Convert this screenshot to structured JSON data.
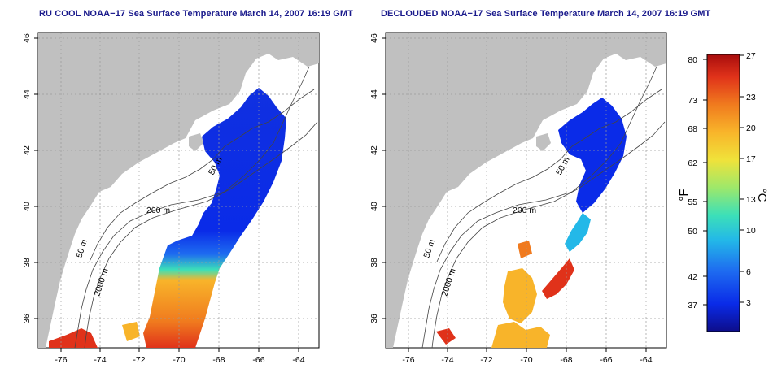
{
  "maps": [
    {
      "title": "RU COOL NOAA−17 Sea Surface Temperature March 14, 2007 16:19 GMT",
      "xticks": [
        "-76",
        "-74",
        "-72",
        "-70",
        "-68",
        "-66",
        "-64"
      ],
      "yticks": [
        "36",
        "38",
        "40",
        "42",
        "44",
        "46"
      ],
      "contour_labels": [
        "50 m",
        "200 m",
        "2000 m",
        "50 m"
      ],
      "xlim": [
        -77.2,
        -63.1
      ],
      "ylim": [
        35.0,
        46.0
      ]
    },
    {
      "title": "DECLOUDED NOAA−17 Sea Surface Temperature March 14, 2007 16:19 GMT",
      "xticks": [
        "-76",
        "-74",
        "-72",
        "-70",
        "-68",
        "-66",
        "-64"
      ],
      "yticks": [
        "36",
        "38",
        "40",
        "42",
        "44",
        "46"
      ],
      "contour_labels": [
        "50 m",
        "200 m",
        "2000 m",
        "50 m"
      ],
      "xlim": [
        -77.2,
        -63.1
      ],
      "ylim": [
        35.0,
        46.0
      ]
    }
  ],
  "colorbar": {
    "fahrenheit_label": "°F",
    "celsius_label": "°C",
    "fahrenheit_ticks": [
      "80",
      "73",
      "68",
      "62",
      "55",
      "50",
      "42",
      "37"
    ],
    "celsius_ticks": [
      "27",
      "23",
      "20",
      "17",
      "13",
      "10",
      "6",
      "3"
    ],
    "range_c": [
      0,
      27
    ],
    "colors": [
      "#0d0d8a",
      "#0a2be8",
      "#1e6cf0",
      "#23b8e8",
      "#3ce0b8",
      "#9ee86a",
      "#f0e23a",
      "#f8b42a",
      "#f07a1e",
      "#e0321a",
      "#a80d0d"
    ]
  },
  "colors": {
    "land": "#c0c0c0",
    "ocean": "#ffffff",
    "title": "#1a1a8c",
    "grid": "#9a9a9a"
  }
}
